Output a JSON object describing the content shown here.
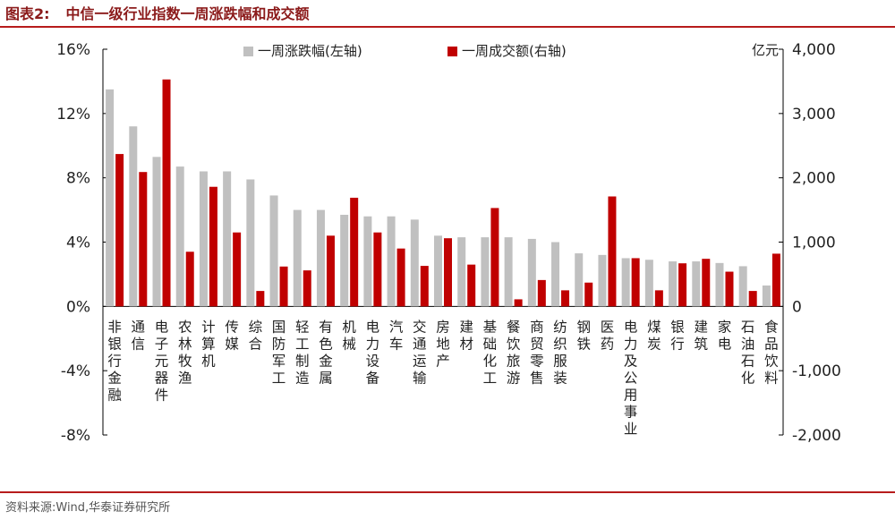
{
  "figure": {
    "label": "图表2:",
    "title": "中信一级行业指数一周涨跌幅和成交额",
    "source": "资料来源:Wind,华泰证券研究所"
  },
  "chart_data": {
    "type": "bar",
    "title": "中信一级行业指数一周涨跌幅和成交额",
    "categories": [
      "非银行金融",
      "通信",
      "电子元器件",
      "农林牧渔",
      "计算机",
      "传媒",
      "综合",
      "国防军工",
      "轻工制造",
      "有色金属",
      "机械",
      "电力设备",
      "汽车",
      "交通运输",
      "房地产",
      "建材",
      "基础化工",
      "餐饮旅游",
      "商贸零售",
      "纺织服装",
      "钢铁",
      "医药",
      "电力及公用事业",
      "煤炭",
      "银行",
      "建筑",
      "家电",
      "石油石化",
      "食品饮料"
    ],
    "series": [
      {
        "name": "一周涨跌幅(左轴)",
        "axis": "left",
        "color": "#c0c0c0",
        "unit": "%",
        "values": [
          13.5,
          11.2,
          9.3,
          8.7,
          8.4,
          8.4,
          7.9,
          6.9,
          6.0,
          6.0,
          5.7,
          5.6,
          5.6,
          5.4,
          4.4,
          4.3,
          4.3,
          4.3,
          4.2,
          4.0,
          3.3,
          3.2,
          3.0,
          2.9,
          2.8,
          2.8,
          2.7,
          2.5,
          1.3
        ]
      },
      {
        "name": "一周成交额(右轴)",
        "axis": "right",
        "color": "#c00000",
        "unit": "亿元",
        "values": [
          2370,
          2090,
          3530,
          850,
          1860,
          1150,
          240,
          620,
          560,
          1100,
          1690,
          1150,
          900,
          630,
          1060,
          650,
          1530,
          110,
          410,
          250,
          370,
          1710,
          750,
          250,
          670,
          740,
          540,
          240,
          820
        ]
      }
    ],
    "left_axis": {
      "ylim": [
        -8,
        16
      ],
      "ticks": [
        "16%",
        "12%",
        "8%",
        "4%",
        "0%",
        "-4%",
        "-8%"
      ],
      "tick_values": [
        16,
        12,
        8,
        4,
        0,
        -4,
        -8
      ]
    },
    "right_axis": {
      "ylim": [
        -2000,
        4000
      ],
      "label": "亿元",
      "ticks": [
        "4,000",
        "3,000",
        "2,000",
        "1,000",
        "0",
        "-1,000",
        "-2,000"
      ],
      "tick_values": [
        4000,
        3000,
        2000,
        1000,
        0,
        -1000,
        -2000
      ]
    },
    "legend": {
      "position": "top-center"
    },
    "grid": false
  }
}
